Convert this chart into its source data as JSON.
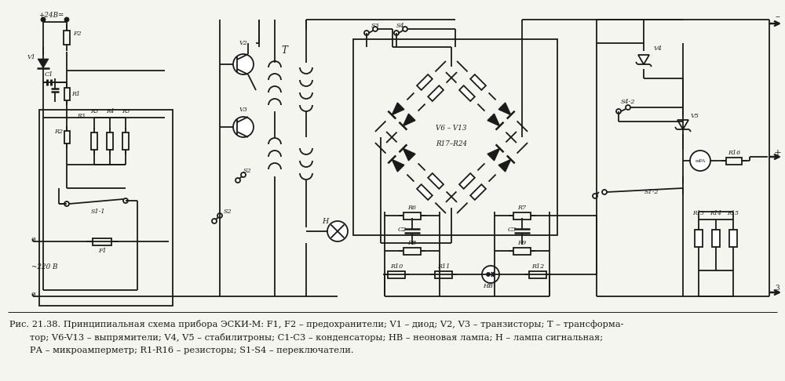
{
  "background_color": "#f5f5f0",
  "fig_width": 10.0,
  "fig_height": 4.86,
  "dpi": 100,
  "caption_line1": "Рис. 21.38. Принципиальная схема прибора ЭСКИ-М: F1, F2 – предохранители; V1 – диод; V2, V3 – транзисторы; T – трансформа-",
  "caption_line2": "тор; V6-V13 – выпрямители; V4, V5 – стабилитроны; C1-C3 – конденсаторы; НВ – неоновая лампа; H – лампа сигнальная;",
  "caption_line3": "PА – микроамперметр; R1-R16 – резисторы; S1-S4 – переключатели.",
  "caption_fontsize": 8.2,
  "line_color": "#1a1a1a",
  "line_width": 1.3,
  "label_fontsize": 6.5,
  "small_fontsize": 5.8
}
